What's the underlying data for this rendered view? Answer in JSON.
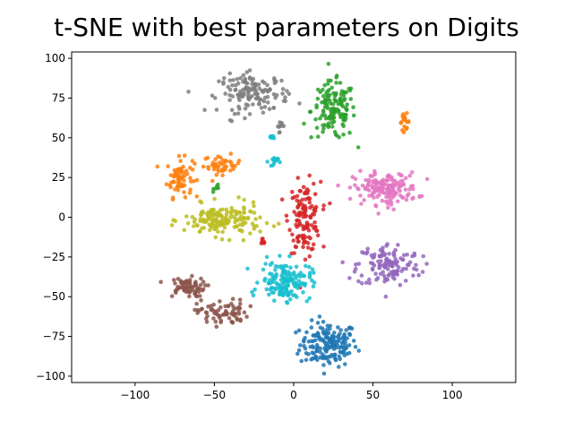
{
  "chart_data": {
    "type": "scatter",
    "title": "t-SNE with best parameters on Digits",
    "xlabel": "",
    "ylabel": "",
    "xlim": [
      -140,
      140
    ],
    "ylim": [
      -104,
      104
    ],
    "xticks": [
      -100,
      -50,
      0,
      50,
      100
    ],
    "yticks": [
      -100,
      -75,
      -50,
      -25,
      0,
      25,
      50,
      75,
      100
    ],
    "xtick_labels": [
      "−100",
      "−50",
      "0",
      "50",
      "100"
    ],
    "ytick_labels": [
      "−100",
      "−75",
      "−50",
      "−25",
      "0",
      "25",
      "50",
      "75",
      "100"
    ],
    "grid": false,
    "legend": "none",
    "marker_size": 2.3,
    "clusters": [
      {
        "color": "#1f77b4",
        "cx": 22,
        "cy": -80,
        "sx": 9,
        "sy": 7,
        "n": 170
      },
      {
        "color": "#ff7f0e",
        "cx": -72,
        "cy": 25,
        "sx": 4,
        "sy": 6,
        "n": 70
      },
      {
        "color": "#ff7f0e",
        "cx": -45,
        "cy": 33,
        "sx": 6,
        "sy": 3,
        "n": 45
      },
      {
        "color": "#ff7f0e",
        "cx": 70,
        "cy": 60,
        "sx": 1.5,
        "sy": 2.5,
        "n": 18
      },
      {
        "color": "#2ca02c",
        "cx": 25,
        "cy": 67,
        "sx": 7,
        "sy": 9,
        "n": 140
      },
      {
        "color": "#2ca02c",
        "cx": -48,
        "cy": 19,
        "sx": 1.2,
        "sy": 1.2,
        "n": 6
      },
      {
        "color": "#d62728",
        "cx": 7,
        "cy": 0,
        "sx": 5,
        "sy": 11,
        "n": 130
      },
      {
        "color": "#d62728",
        "cx": -20,
        "cy": -16,
        "sx": 1,
        "sy": 1.5,
        "n": 8
      },
      {
        "color": "#9467bd",
        "cx": 60,
        "cy": -30,
        "sx": 10,
        "sy": 7,
        "n": 130
      },
      {
        "color": "#8c564b",
        "cx": -68,
        "cy": -44,
        "sx": 6,
        "sy": 3,
        "n": 70
      },
      {
        "color": "#8c564b",
        "cx": -45,
        "cy": -60,
        "sx": 8,
        "sy": 4,
        "n": 75
      },
      {
        "color": "#e377c2",
        "cx": 58,
        "cy": 18,
        "sx": 10,
        "sy": 5,
        "n": 160
      },
      {
        "color": "#7f7f7f",
        "cx": -25,
        "cy": 78,
        "sx": 11,
        "sy": 6,
        "n": 140
      },
      {
        "color": "#7f7f7f",
        "cx": -9,
        "cy": 58,
        "sx": 1,
        "sy": 2,
        "n": 10
      },
      {
        "color": "#bcbd22",
        "cx": -45,
        "cy": -2,
        "sx": 12,
        "sy": 5,
        "n": 160
      },
      {
        "color": "#17becf",
        "cx": -5,
        "cy": -40,
        "sx": 8,
        "sy": 6,
        "n": 150
      },
      {
        "color": "#17becf",
        "cx": -14,
        "cy": 50,
        "sx": 1.2,
        "sy": 0.8,
        "n": 7
      },
      {
        "color": "#17becf",
        "cx": -13,
        "cy": 35,
        "sx": 1.5,
        "sy": 1.5,
        "n": 15
      }
    ]
  }
}
